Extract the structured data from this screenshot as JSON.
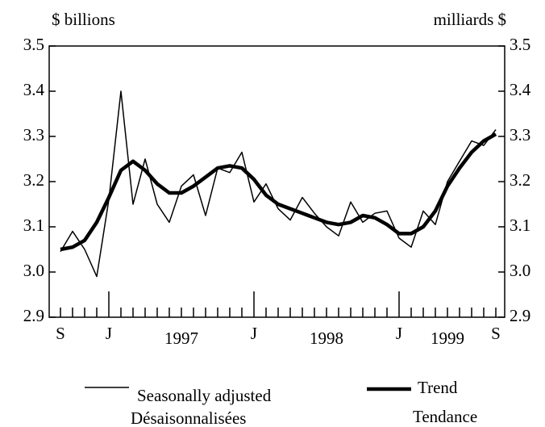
{
  "chart_data": {
    "type": "line",
    "y_label_left": "$ billions",
    "y_label_right": "milliards $",
    "categories": [
      "S",
      null,
      null,
      null,
      "J",
      null,
      null,
      null,
      null,
      null,
      null,
      null,
      null,
      null,
      null,
      null,
      "J",
      null,
      null,
      null,
      null,
      null,
      null,
      null,
      null,
      null,
      null,
      null,
      "J",
      null,
      null,
      null,
      null,
      null,
      null,
      null,
      "S"
    ],
    "year_labels": [
      "1997",
      "1998",
      "1999"
    ],
    "series": [
      {
        "name": "Seasonally adjusted",
        "name_alt": "Désaisonnalisées",
        "color": "#000000",
        "width": 1.5,
        "values": [
          3.045,
          3.09,
          3.05,
          2.99,
          3.16,
          3.4,
          3.15,
          3.25,
          3.15,
          3.11,
          3.19,
          3.215,
          3.125,
          3.23,
          3.22,
          3.265,
          3.155,
          3.195,
          3.14,
          3.115,
          3.165,
          3.13,
          3.1,
          3.08,
          3.155,
          3.11,
          3.13,
          3.135,
          3.075,
          3.055,
          3.135,
          3.105,
          3.2,
          3.245,
          3.29,
          3.28,
          3.315
        ]
      },
      {
        "name": "Trend",
        "name_alt": "Tendance",
        "color": "#000000",
        "width": 4.5,
        "values": [
          3.05,
          3.055,
          3.07,
          3.11,
          3.165,
          3.225,
          3.245,
          3.225,
          3.195,
          3.175,
          3.175,
          3.19,
          3.21,
          3.23,
          3.235,
          3.23,
          3.205,
          3.17,
          3.15,
          3.14,
          3.13,
          3.12,
          3.11,
          3.105,
          3.11,
          3.125,
          3.12,
          3.105,
          3.085,
          3.085,
          3.1,
          3.135,
          3.19,
          3.23,
          3.265,
          3.29,
          3.305
        ]
      }
    ],
    "ylim": [
      2.9,
      3.5
    ],
    "yticks": [
      2.9,
      {
        "value": 3,
        "label": "3.0"
      },
      3.1,
      3.2,
      3.3,
      3.4,
      3.5
    ],
    "y2lim": [
      2.9,
      3.5
    ],
    "y2ticks": [
      2.9,
      {
        "value": 3,
        "label": "3.0"
      },
      3.1,
      3.2,
      3.3,
      3.4,
      3.5
    ]
  }
}
